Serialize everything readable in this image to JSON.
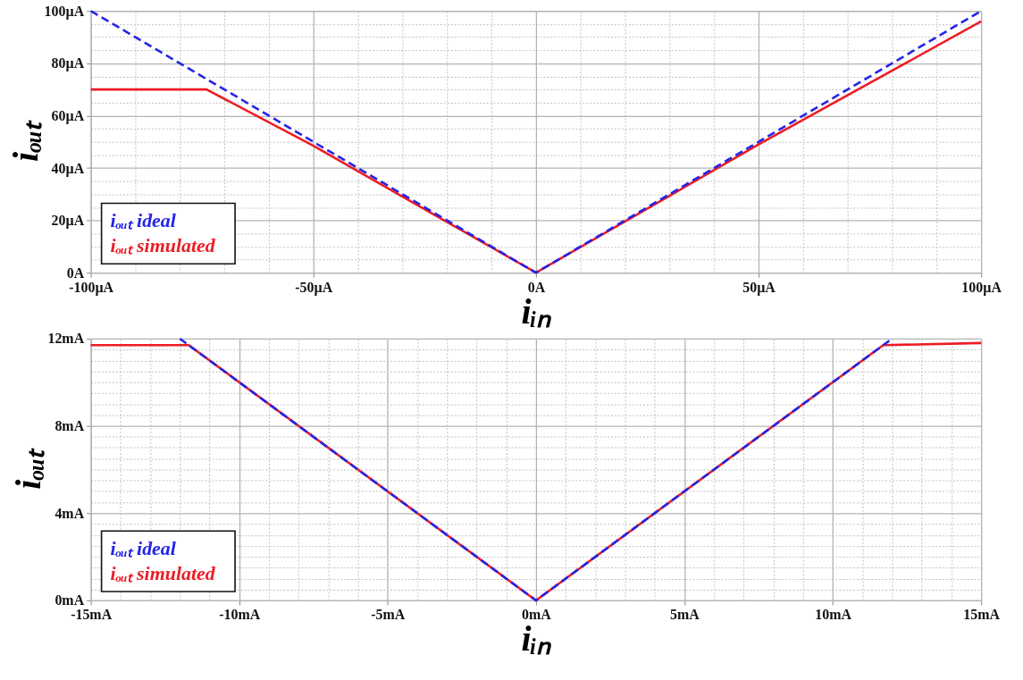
{
  "chart_data": [
    {
      "type": "line",
      "xlabel": "iᵢₙ",
      "ylabel": "iₒᵤₜ",
      "xlim": [
        -100,
        100
      ],
      "ylim": [
        0,
        100
      ],
      "xticks": [
        {
          "value": -100,
          "label": "-100µA"
        },
        {
          "value": -90,
          "label": null
        },
        {
          "value": -80,
          "label": null
        },
        {
          "value": -70,
          "label": null
        },
        {
          "value": -60,
          "label": null
        },
        {
          "value": -50,
          "label": "-50µA"
        },
        {
          "value": -40,
          "label": null
        },
        {
          "value": -30,
          "label": null
        },
        {
          "value": -20,
          "label": null
        },
        {
          "value": -10,
          "label": null
        },
        {
          "value": 0,
          "label": "0A"
        },
        {
          "value": 10,
          "label": null
        },
        {
          "value": 20,
          "label": null
        },
        {
          "value": 30,
          "label": null
        },
        {
          "value": 40,
          "label": null
        },
        {
          "value": 50,
          "label": "50µA"
        },
        {
          "value": 60,
          "label": null
        },
        {
          "value": 70,
          "label": null
        },
        {
          "value": 80,
          "label": null
        },
        {
          "value": 90,
          "label": null
        },
        {
          "value": 100,
          "label": "100µA"
        }
      ],
      "yticks": [
        {
          "value": 0,
          "label": "0A"
        },
        {
          "value": 5,
          "label": null
        },
        {
          "value": 10,
          "label": null
        },
        {
          "value": 15,
          "label": null
        },
        {
          "value": 20,
          "label": "20µA"
        },
        {
          "value": 25,
          "label": null
        },
        {
          "value": 30,
          "label": null
        },
        {
          "value": 35,
          "label": null
        },
        {
          "value": 40,
          "label": "40µA"
        },
        {
          "value": 45,
          "label": null
        },
        {
          "value": 50,
          "label": null
        },
        {
          "value": 55,
          "label": null
        },
        {
          "value": 60,
          "label": "60µA"
        },
        {
          "value": 65,
          "label": null
        },
        {
          "value": 70,
          "label": null
        },
        {
          "value": 75,
          "label": null
        },
        {
          "value": 80,
          "label": "80µA"
        },
        {
          "value": 85,
          "label": null
        },
        {
          "value": 90,
          "label": null
        },
        {
          "value": 95,
          "label": null
        },
        {
          "value": 100,
          "label": "100µA"
        }
      ],
      "grid": true,
      "legend": "bottom left",
      "series": [
        {
          "name": "iₒᵤₜ ideal",
          "color": "#2424e8",
          "line_style": "dashed",
          "x": [
            -100,
            0,
            100
          ],
          "values": [
            100,
            0,
            100
          ]
        },
        {
          "name": "iₒᵤₜ simulated",
          "color": "#ec1c24",
          "line_style": "solid",
          "x": [
            -100,
            -74,
            -50,
            0,
            50,
            100
          ],
          "values": [
            70,
            70,
            48.5,
            0,
            49,
            96
          ]
        }
      ]
    },
    {
      "type": "line",
      "xlabel": "iᵢₙ",
      "ylabel": "iₒᵤₜ",
      "xlim": [
        -15,
        15
      ],
      "ylim": [
        0,
        12
      ],
      "xticks": [
        {
          "value": -15,
          "label": "-15mA"
        },
        {
          "value": -14,
          "label": null
        },
        {
          "value": -13,
          "label": null
        },
        {
          "value": -12,
          "label": null
        },
        {
          "value": -11,
          "label": null
        },
        {
          "value": -10,
          "label": "-10mA"
        },
        {
          "value": -9,
          "label": null
        },
        {
          "value": -8,
          "label": null
        },
        {
          "value": -7,
          "label": null
        },
        {
          "value": -6,
          "label": null
        },
        {
          "value": -5,
          "label": "-5mA"
        },
        {
          "value": -4,
          "label": null
        },
        {
          "value": -3,
          "label": null
        },
        {
          "value": -2,
          "label": null
        },
        {
          "value": -1,
          "label": null
        },
        {
          "value": 0,
          "label": "0mA"
        },
        {
          "value": 1,
          "label": null
        },
        {
          "value": 2,
          "label": null
        },
        {
          "value": 3,
          "label": null
        },
        {
          "value": 4,
          "label": null
        },
        {
          "value": 5,
          "label": "5mA"
        },
        {
          "value": 6,
          "label": null
        },
        {
          "value": 7,
          "label": null
        },
        {
          "value": 8,
          "label": null
        },
        {
          "value": 9,
          "label": null
        },
        {
          "value": 10,
          "label": "10mA"
        },
        {
          "value": 11,
          "label": null
        },
        {
          "value": 12,
          "label": null
        },
        {
          "value": 13,
          "label": null
        },
        {
          "value": 14,
          "label": null
        },
        {
          "value": 15,
          "label": "15mA"
        }
      ],
      "yticks": [
        {
          "value": 0,
          "label": "0mA"
        },
        {
          "value": 0.5,
          "label": null
        },
        {
          "value": 1,
          "label": null
        },
        {
          "value": 1.5,
          "label": null
        },
        {
          "value": 2,
          "label": null
        },
        {
          "value": 2.5,
          "label": null
        },
        {
          "value": 3,
          "label": null
        },
        {
          "value": 3.5,
          "label": null
        },
        {
          "value": 4,
          "label": "4mA"
        },
        {
          "value": 4.5,
          "label": null
        },
        {
          "value": 5,
          "label": null
        },
        {
          "value": 5.5,
          "label": null
        },
        {
          "value": 6,
          "label": null
        },
        {
          "value": 6.5,
          "label": null
        },
        {
          "value": 7,
          "label": null
        },
        {
          "value": 7.5,
          "label": null
        },
        {
          "value": 8,
          "label": "8mA"
        },
        {
          "value": 8.5,
          "label": null
        },
        {
          "value": 9,
          "label": null
        },
        {
          "value": 9.5,
          "label": null
        },
        {
          "value": 10,
          "label": null
        },
        {
          "value": 10.5,
          "label": null
        },
        {
          "value": 11,
          "label": null
        },
        {
          "value": 11.5,
          "label": null
        },
        {
          "value": 12,
          "label": "12mA"
        }
      ],
      "grid": true,
      "legend": "bottom left",
      "series": [
        {
          "name": "iₒᵤₜ ideal",
          "color": "#2424e8",
          "line_style": "dashed",
          "x": [
            -12,
            0,
            12
          ],
          "values": [
            12,
            0,
            12
          ]
        },
        {
          "name": "iₒᵤₜ simulated",
          "color": "#ec1c24",
          "line_style": "solid",
          "x": [
            -15,
            -11.7,
            0,
            11.7,
            15
          ],
          "values": [
            11.7,
            11.7,
            0,
            11.7,
            11.8
          ]
        }
      ]
    }
  ]
}
